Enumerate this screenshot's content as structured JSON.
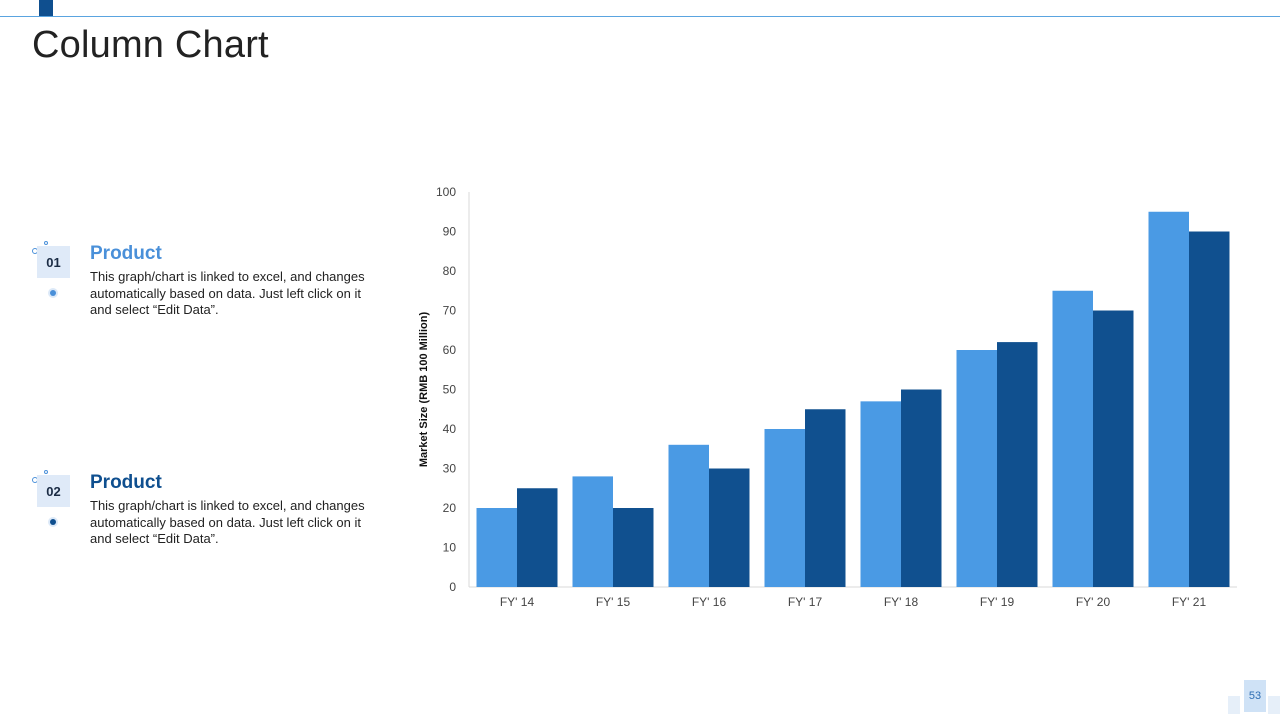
{
  "slide": {
    "title": "Column Chart",
    "page_number": "53"
  },
  "items": [
    {
      "number": "01",
      "title": "Product",
      "text": "This graph/chart is linked to excel, and changes automatically based on data. Just left click on it and select “Edit Data”.",
      "accent": "#4a90d9"
    },
    {
      "number": "02",
      "title": "Product",
      "text": "This graph/chart is linked to excel, and changes automatically based on data. Just left click on it and select “Edit Data”.",
      "accent": "#0f4f8f"
    }
  ],
  "colors": {
    "series1": "#4a9ae4",
    "series2": "#10508f",
    "accent_line": "#5aa4e0"
  },
  "chart_data": {
    "type": "bar",
    "categories": [
      "FY' 14",
      "FY' 15",
      "FY' 16",
      "FY' 17",
      "FY' 18",
      "FY' 19",
      "FY' 20",
      "FY' 21"
    ],
    "series": [
      {
        "values": [
          20,
          28,
          36,
          40,
          47,
          60,
          75,
          95
        ]
      },
      {
        "values": [
          25,
          20,
          30,
          45,
          50,
          62,
          70,
          90
        ]
      }
    ],
    "ylabel": "Market Size (RMB 100 Million)",
    "xlabel": "",
    "ylim": [
      0,
      100
    ],
    "yticks": [
      0,
      10,
      20,
      30,
      40,
      50,
      60,
      70,
      80,
      90,
      100
    ],
    "grid": false,
    "legend": "none"
  }
}
